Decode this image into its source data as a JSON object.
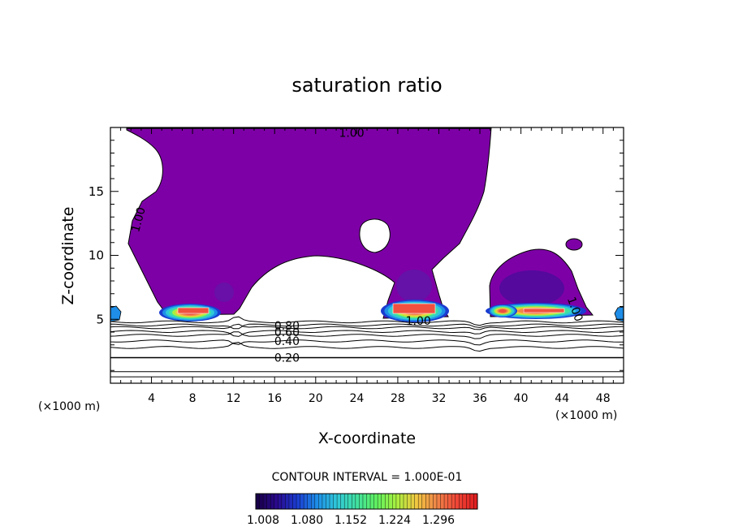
{
  "chart_data": {
    "type": "heatmap",
    "title": "saturation ratio",
    "xlabel": "X-coordinate",
    "ylabel": "Z-coordinate",
    "x_unit_label": "(×1000 m)",
    "z_unit_label": "(×1000 m)",
    "xlim": [
      0,
      50
    ],
    "ylim": [
      0,
      20
    ],
    "x_ticks": [
      4,
      8,
      12,
      16,
      20,
      24,
      28,
      32,
      36,
      40,
      44,
      48
    ],
    "y_ticks": [
      5,
      10,
      15
    ],
    "contour_interval_label": "CONTOUR INTERVAL = 1.000E-01",
    "contour_labels": [
      {
        "text": "1.00",
        "x": 23.5,
        "z": 19.6
      },
      {
        "text": "1.00",
        "x": 2.7,
        "z": 12.8
      },
      {
        "text": "1.00",
        "x": 30.0,
        "z": 4.9
      },
      {
        "text": "1.00",
        "x": 45.3,
        "z": 5.8
      },
      {
        "text": "0.80",
        "x": 17.2,
        "z": 4.5
      },
      {
        "text": "0.60",
        "x": 17.2,
        "z": 4.0
      },
      {
        "text": "0.40",
        "x": 17.2,
        "z": 3.3
      },
      {
        "text": "0.20",
        "x": 17.2,
        "z": 2.0
      }
    ],
    "isoline_levels": [
      0.1,
      0.2,
      0.3,
      0.4,
      0.5,
      0.6,
      0.7,
      0.8,
      0.9
    ],
    "colorbar": {
      "tick_labels": [
        "1.008",
        "1.080",
        "1.152",
        "1.224",
        "1.296"
      ],
      "range": [
        1.0,
        1.33
      ],
      "colors": [
        "#18004a",
        "#2a0a90",
        "#1a3cd0",
        "#1e8ee8",
        "#30c8d8",
        "#40e0a0",
        "#60f060",
        "#a8f040",
        "#f0c840",
        "#f08848",
        "#f04838",
        "#e02020"
      ]
    }
  }
}
